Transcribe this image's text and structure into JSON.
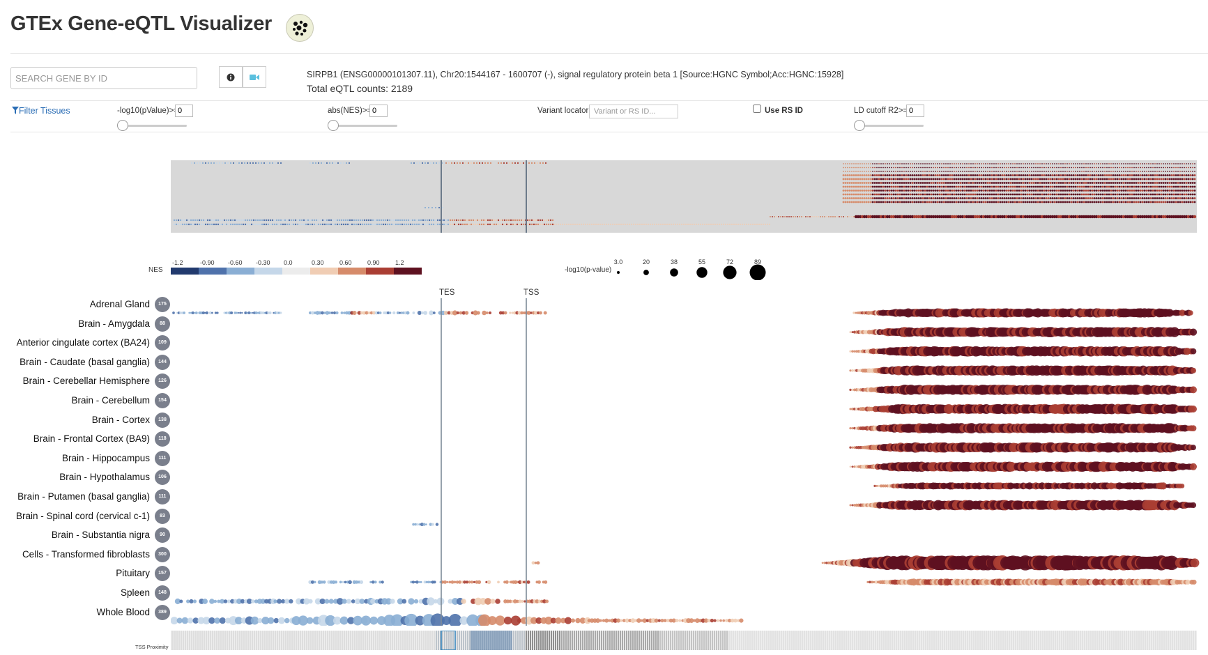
{
  "app": {
    "title": "GTEx Gene-eQTL Visualizer"
  },
  "search": {
    "placeholder": "SEARCH GENE BY ID"
  },
  "gene": {
    "info": "SIRPB1 (ENSG00000101307.11), Chr20:1544167 - 1600707 (-), signal regulatory protein beta 1 [Source:HGNC Symbol;Acc:HGNC:15928]",
    "counts": "Total eQTL counts: 2189"
  },
  "filters": {
    "filter_label": "Filter Tissues",
    "pvalue_label": "-log10(pValue)>=",
    "pvalue_value": "0",
    "pvalue_level": 0,
    "nes_label": "abs(NES)>=",
    "nes_value": "0",
    "nes_level": 0,
    "variant_label": "Variant locator",
    "variant_placeholder": "Variant or RS ID...",
    "rsid_label": "Use RS ID",
    "rsid_checked": false,
    "ld_label": "LD cutoff R2>=",
    "ld_value": "0",
    "ld_level": 0
  },
  "legend": {
    "nes_label": "NES",
    "nes_ticks": [
      "-1.2",
      "-0.90",
      "-0.60",
      "-0.30",
      "0.0",
      "0.30",
      "0.60",
      "0.90",
      "1.2"
    ],
    "nes_colors": [
      "#223a6e",
      "#4f72ab",
      "#8aaed4",
      "#c5d7e9",
      "#ececec",
      "#f0cdb4",
      "#d68b6a",
      "#aa3e33",
      "#5e1120"
    ],
    "pval_label": "-log10(p-value)",
    "pval_ticks": [
      "3.0",
      "20",
      "38",
      "55",
      "72",
      "89"
    ]
  },
  "markers": {
    "tes": "TES",
    "tss": "TSS",
    "tss_proximity": "TSS Proximity"
  },
  "tissues": [
    {
      "name": "Adrenal Gland",
      "count": "175"
    },
    {
      "name": "Brain - Amygdala",
      "count": "88"
    },
    {
      "name": "Anterior cingulate cortex (BA24)",
      "count": "109"
    },
    {
      "name": "Brain - Caudate (basal ganglia)",
      "count": "144"
    },
    {
      "name": "Brain - Cerebellar Hemisphere",
      "count": "126"
    },
    {
      "name": "Brain - Cerebellum",
      "count": "154"
    },
    {
      "name": "Brain - Cortex",
      "count": "138"
    },
    {
      "name": "Brain - Frontal Cortex (BA9)",
      "count": "118"
    },
    {
      "name": "Brain - Hippocampus",
      "count": "111"
    },
    {
      "name": "Brain - Hypothalamus",
      "count": "106"
    },
    {
      "name": "Brain - Putamen (basal ganglia)",
      "count": "111"
    },
    {
      "name": "Brain - Spinal cord (cervical c-1)",
      "count": "83"
    },
    {
      "name": "Brain - Substantia nigra",
      "count": "90"
    },
    {
      "name": "Cells - Transformed fibroblasts",
      "count": "300"
    },
    {
      "name": "Pituitary",
      "count": "157"
    },
    {
      "name": "Spleen",
      "count": "148"
    },
    {
      "name": "Whole Blood",
      "count": "389"
    }
  ],
  "icons": {
    "logo": "gtex-logo-icon",
    "info": "info-icon",
    "video": "video-camera-icon",
    "filter": "filter-funnel-icon"
  }
}
